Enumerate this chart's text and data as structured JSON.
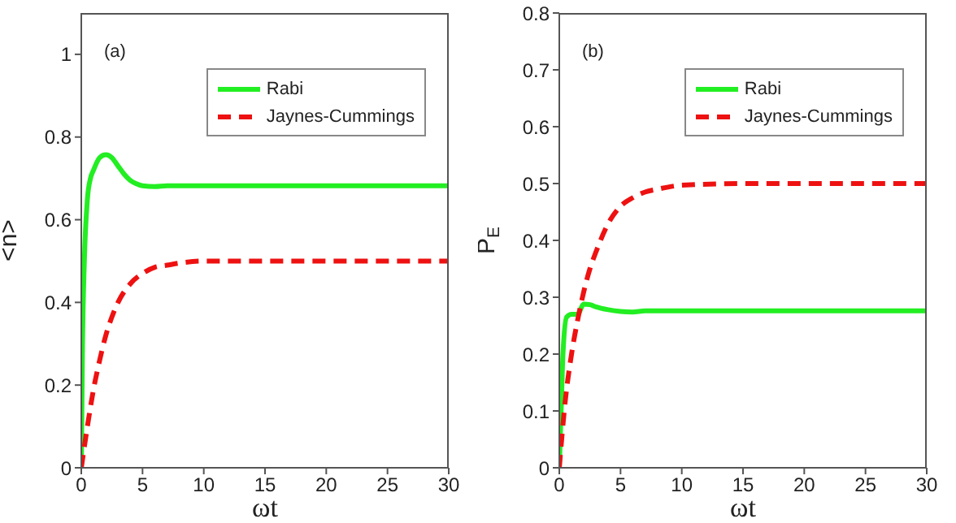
{
  "chart_data": [
    {
      "type": "line",
      "xlabel": "ωt",
      "ylabel": "<n>",
      "annotations": [
        "(a)"
      ],
      "xlim": [
        0,
        30
      ],
      "xticks": [
        0,
        5,
        10,
        15,
        20,
        25,
        30
      ],
      "ylim": [
        0,
        1.1
      ],
      "yticks": [
        0,
        0.2,
        0.4,
        0.6,
        0.8,
        1
      ],
      "legend": "top right",
      "grid": false,
      "series": [
        {
          "name": "Rabi",
          "color": "#22ee22",
          "line_style": "solid",
          "x": [
            0,
            0.1,
            0.25,
            0.5,
            0.75,
            1,
            1.5,
            2,
            2.5,
            3,
            3.5,
            4,
            4.5,
            5,
            6,
            7,
            10,
            20,
            30
          ],
          "values": [
            0,
            0.3,
            0.5,
            0.65,
            0.7,
            0.72,
            0.75,
            0.757,
            0.75,
            0.73,
            0.71,
            0.695,
            0.687,
            0.682,
            0.68,
            0.682,
            0.682,
            0.682,
            0.682
          ]
        },
        {
          "name": "Jaynes-Cummings",
          "color": "#ee1111",
          "line_style": "dashed",
          "x": [
            0,
            0.5,
            1,
            1.5,
            2,
            2.5,
            3,
            4,
            5,
            6,
            7,
            8,
            10,
            15,
            20,
            30
          ],
          "values": [
            0,
            0.1,
            0.19,
            0.26,
            0.32,
            0.365,
            0.4,
            0.445,
            0.47,
            0.485,
            0.49,
            0.495,
            0.5,
            0.5,
            0.5,
            0.5
          ]
        }
      ]
    },
    {
      "type": "line",
      "xlabel": "ωt",
      "ylabel": "P$_{E}$",
      "annotations": [
        "(b)"
      ],
      "xlim": [
        0,
        30
      ],
      "xticks": [
        0,
        5,
        10,
        15,
        20,
        25,
        30
      ],
      "ylim": [
        0,
        0.8
      ],
      "yticks": [
        0,
        0.1,
        0.2,
        0.3,
        0.4,
        0.5,
        0.6,
        0.7,
        0.8
      ],
      "legend": "top right",
      "grid": false,
      "series": [
        {
          "name": "Rabi",
          "color": "#22ee22",
          "line_style": "solid",
          "x": [
            0,
            0.15,
            0.3,
            0.6,
            1,
            1.5,
            2,
            2.5,
            3,
            4,
            5,
            6,
            7,
            10,
            20,
            30
          ],
          "values": [
            0,
            0.1,
            0.2,
            0.265,
            0.27,
            0.27,
            0.288,
            0.287,
            0.283,
            0.278,
            0.275,
            0.274,
            0.276,
            0.276,
            0.276,
            0.276
          ]
        },
        {
          "name": "Jaynes-Cummings",
          "color": "#ee1111",
          "line_style": "dashed",
          "x": [
            0,
            0.5,
            1,
            1.5,
            2,
            2.5,
            3,
            4,
            5,
            6,
            7,
            8,
            10,
            15,
            20,
            30
          ],
          "values": [
            0,
            0.12,
            0.2,
            0.26,
            0.31,
            0.35,
            0.38,
            0.43,
            0.46,
            0.475,
            0.485,
            0.49,
            0.497,
            0.5,
            0.5,
            0.5
          ]
        }
      ]
    }
  ]
}
